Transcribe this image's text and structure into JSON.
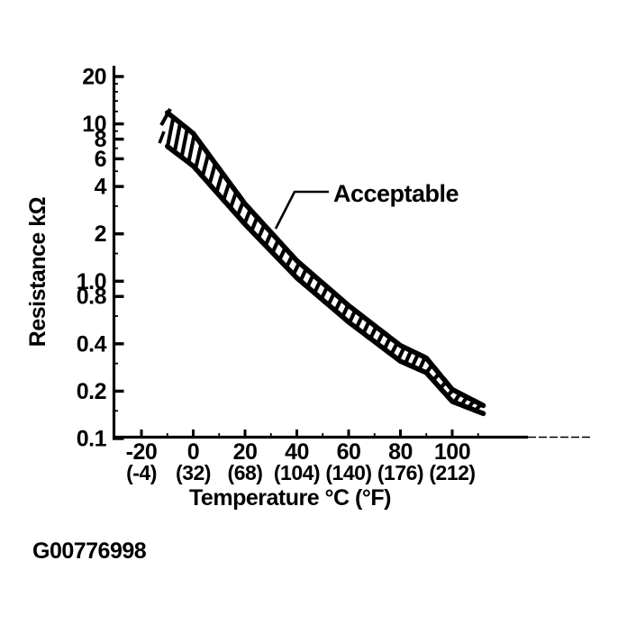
{
  "figure": {
    "code": "G00776998"
  },
  "chart_data": {
    "type": "area",
    "subtype": "tolerance-band",
    "title": "",
    "xlabel": "Temperature °C (°F)",
    "ylabel": "Resistance kΩ",
    "annotation": "Acceptable",
    "y_scale": "log",
    "ylim": [
      0.1,
      20
    ],
    "xlim_c": [
      -30,
      115
    ],
    "grid": false,
    "y_ticks": [
      {
        "value": 20,
        "label": "20"
      },
      {
        "value": 10,
        "label": "10"
      },
      {
        "value": 8,
        "label": "8"
      },
      {
        "value": 6,
        "label": "6"
      },
      {
        "value": 4,
        "label": "4"
      },
      {
        "value": 2,
        "label": "2"
      },
      {
        "value": 1.0,
        "label": "1.0"
      },
      {
        "value": 0.8,
        "label": "0.8"
      },
      {
        "value": 0.4,
        "label": "0.4"
      },
      {
        "value": 0.2,
        "label": "0.2"
      },
      {
        "value": 0.1,
        "label": "0.1"
      }
    ],
    "y_minor_ticks": [
      18,
      16,
      14,
      12,
      9,
      7,
      5,
      3,
      1.5,
      0.6,
      0.3,
      0.15
    ],
    "x_ticks": [
      {
        "value": -20,
        "label_c": "-20",
        "label_f": "(-4)"
      },
      {
        "value": 0,
        "label_c": "0",
        "label_f": "(32)"
      },
      {
        "value": 20,
        "label_c": "20",
        "label_f": "(68)"
      },
      {
        "value": 40,
        "label_c": "40",
        "label_f": "(104)"
      },
      {
        "value": 60,
        "label_c": "60",
        "label_f": "(140)"
      },
      {
        "value": 80,
        "label_c": "80",
        "label_f": "(176)"
      },
      {
        "value": 100,
        "label_c": "100",
        "label_f": "(212)"
      }
    ],
    "x_minor_ticks": [
      -10,
      10,
      30,
      50,
      70,
      90,
      110
    ],
    "series": [
      {
        "name": "acceptable-upper-limit",
        "temps_c": [
          -10,
          0,
          20,
          40,
          60,
          80,
          90,
          100,
          112
        ],
        "resistance_kohm": [
          11.8,
          8.7,
          3.1,
          1.35,
          0.7,
          0.39,
          0.325,
          0.205,
          0.162
        ]
      },
      {
        "name": "acceptable-lower-limit",
        "temps_c": [
          -10,
          0,
          20,
          40,
          60,
          80,
          90,
          100,
          112
        ],
        "resistance_kohm": [
          7.2,
          5.4,
          2.3,
          1.05,
          0.55,
          0.31,
          0.262,
          0.172,
          0.144
        ]
      }
    ],
    "colors": {
      "ink": "#000000",
      "background": "#ffffff"
    }
  }
}
